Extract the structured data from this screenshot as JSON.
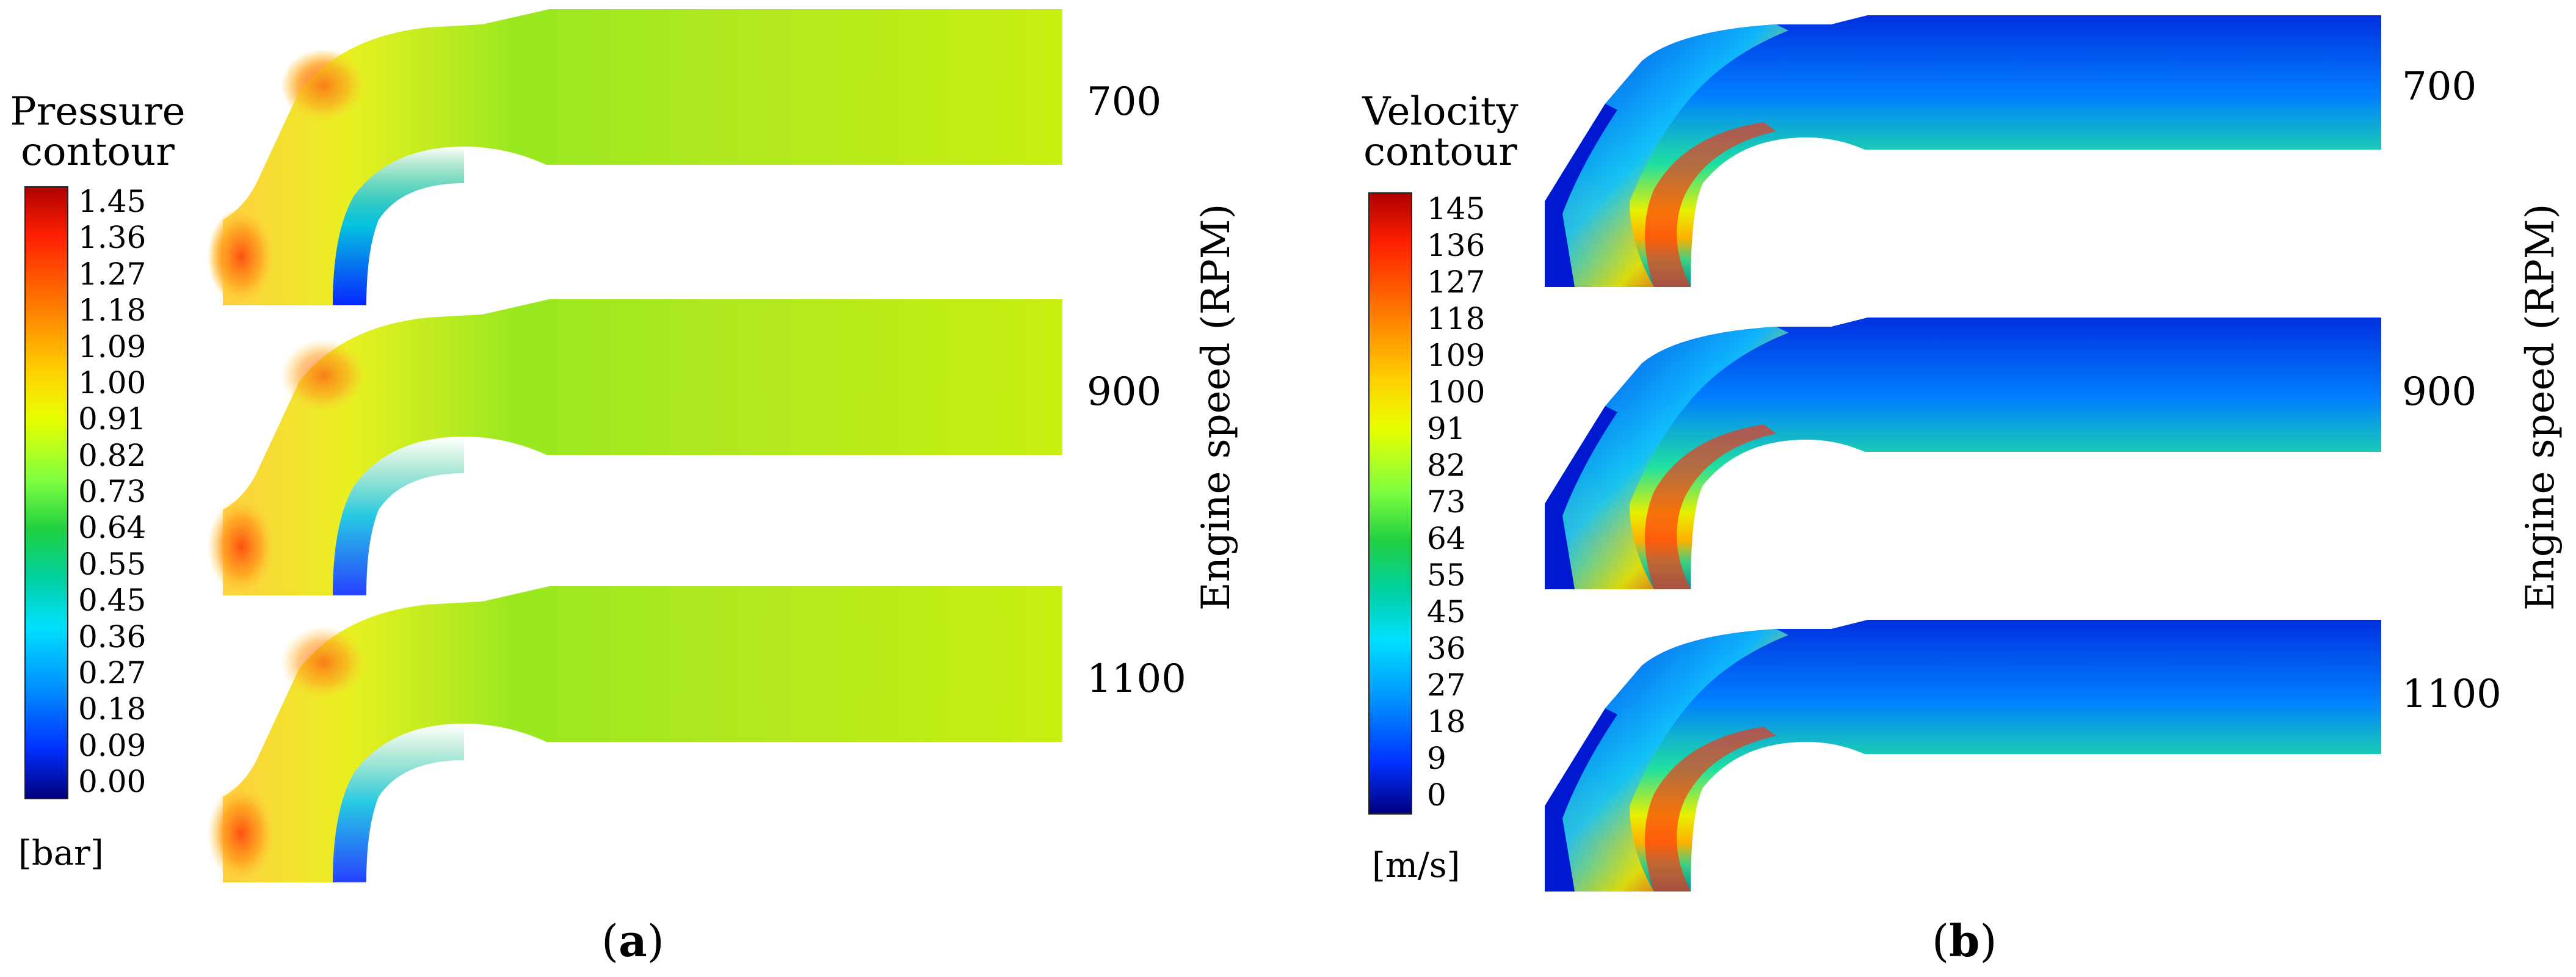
{
  "figure": {
    "panels": [
      {
        "id": "a",
        "caption_letter": "a",
        "colorbar": {
          "title_line1": "Pressure",
          "title_line2": "contour",
          "unit": "[bar]",
          "ticks": [
            "1.45",
            "1.36",
            "1.27",
            "1.18",
            "1.09",
            "1.00",
            "0.91",
            "0.82",
            "0.73",
            "0.64",
            "0.55",
            "0.45",
            "0.36",
            "0.27",
            "0.18",
            "0.09",
            "0.00"
          ]
        },
        "rows": [
          {
            "rpm": "700"
          },
          {
            "rpm": "900"
          },
          {
            "rpm": "1100"
          }
        ],
        "axis_title": "Engine speed (RPM)"
      },
      {
        "id": "b",
        "caption_letter": "b",
        "colorbar": {
          "title_line1": "Velocity",
          "title_line2": "contour",
          "unit": "[m/s]",
          "ticks": [
            "145",
            "136",
            "127",
            "118",
            "109",
            "100",
            "91",
            "82",
            "73",
            "64",
            "55",
            "45",
            "36",
            "27",
            "18",
            "9",
            "0"
          ]
        },
        "rows": [
          {
            "rpm": "700"
          },
          {
            "rpm": "900"
          },
          {
            "rpm": "1100"
          }
        ],
        "axis_title": "Engine speed (RPM)"
      }
    ]
  },
  "colors": {
    "jet": [
      "#00007f",
      "#0000ff",
      "#007fff",
      "#00ffff",
      "#7fff7f",
      "#ffff00",
      "#ff7f00",
      "#ff0000",
      "#7f0000"
    ]
  }
}
